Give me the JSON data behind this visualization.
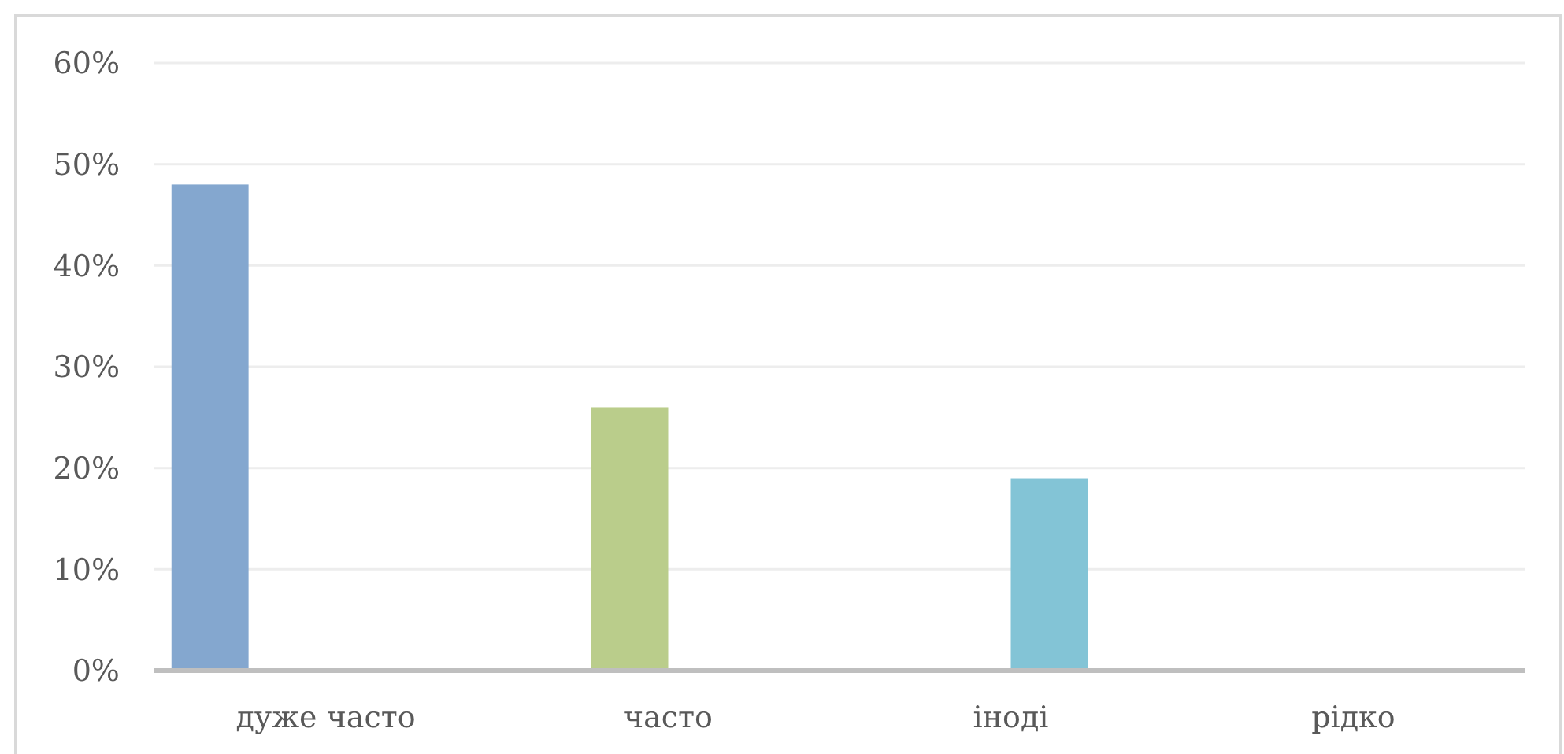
{
  "chart_data": {
    "type": "bar",
    "categories": [
      "дуже часто",
      "часто",
      "іноді",
      "рідко"
    ],
    "series": [
      {
        "color": "#84a7cf",
        "values": [
          48,
          null,
          null,
          null
        ]
      },
      {
        "color": "#bacd8b",
        "values": [
          null,
          26,
          null,
          null
        ]
      },
      {
        "color": "#83c4d6",
        "values": [
          null,
          null,
          19,
          null
        ]
      },
      {
        "color": "#a08cbf",
        "values": [
          null,
          null,
          null,
          0
        ]
      }
    ],
    "ylim": [
      0,
      60
    ],
    "yticks": [
      {
        "value": 0,
        "label": "0%"
      },
      {
        "value": 10,
        "label": "10%"
      },
      {
        "value": 20,
        "label": "20%"
      },
      {
        "value": 30,
        "label": "30%"
      },
      {
        "value": 40,
        "label": "40%"
      },
      {
        "value": 50,
        "label": "50%"
      },
      {
        "value": 60,
        "label": "60%"
      }
    ],
    "grid": "y"
  }
}
